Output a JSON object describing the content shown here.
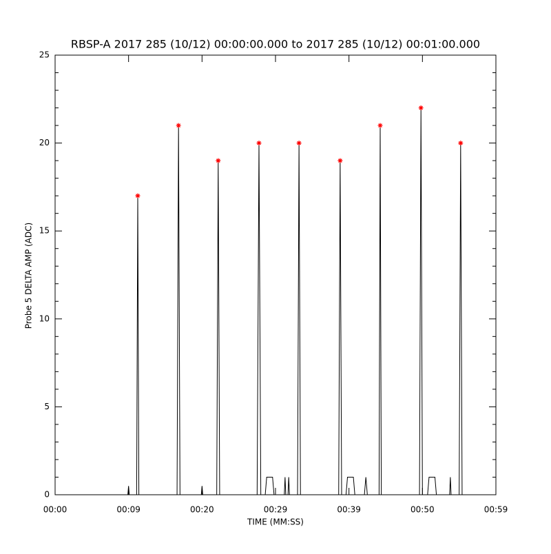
{
  "chart_data": {
    "type": "line",
    "title": "RBSP-A 2017 285 (10/12) 00:00:00.000 to 2017 285 (10/12) 00:01:00.000",
    "x_label": "TIME (MM:SS)",
    "y_label": "Probe 5 DELTA AMP (ADC)",
    "xlim": [
      0,
      60
    ],
    "xticks": [
      {
        "value": 0,
        "label": "00:00"
      },
      {
        "value": 10,
        "label": "00:09"
      },
      {
        "value": 20,
        "label": "00:20"
      },
      {
        "value": 30,
        "label": "00:29"
      },
      {
        "value": 40,
        "label": "00:39"
      },
      {
        "value": 50,
        "label": "00:50"
      },
      {
        "value": 60,
        "label": "00:59"
      }
    ],
    "ylim": [
      0,
      25
    ],
    "yticks": [
      0,
      5,
      10,
      15,
      20,
      25
    ],
    "yminor": 5,
    "series": [
      {
        "color": "#000000",
        "style": "line",
        "x": [
          0,
          9.9,
          10.0,
          10.1,
          11.1,
          11.25,
          11.4,
          16.6,
          16.8,
          17.0,
          19.9,
          20.0,
          20.1,
          22.0,
          22.2,
          22.4,
          27.5,
          27.75,
          28.0,
          28.6,
          28.8,
          29.6,
          29.8,
          31.2,
          31.3,
          31.4,
          31.7,
          31.8,
          31.9,
          33.0,
          33.2,
          33.4,
          38.6,
          38.8,
          39.0,
          39.6,
          39.8,
          40.6,
          40.8,
          42.1,
          42.3,
          42.5,
          44.1,
          44.25,
          44.4,
          49.6,
          49.8,
          50.0,
          50.7,
          50.9,
          51.7,
          51.9,
          53.7,
          53.8,
          53.9,
          55.0,
          55.2,
          55.4,
          60
        ],
        "values": [
          0,
          0,
          0.5,
          0,
          0,
          17,
          0,
          0,
          21,
          0,
          0,
          0.5,
          0,
          0,
          19,
          0,
          0,
          20,
          0,
          0,
          1,
          1,
          0,
          0,
          1,
          0,
          0,
          1,
          0,
          0,
          20,
          0,
          0,
          19,
          0,
          0,
          1,
          1,
          0,
          0,
          1,
          0,
          0,
          21,
          0,
          0,
          22,
          0,
          0,
          1,
          1,
          0,
          0,
          1,
          0,
          0,
          20,
          0,
          0
        ]
      },
      {
        "color": "#ff0000",
        "style": "asterisk",
        "x": [
          11.25,
          16.8,
          22.2,
          27.75,
          33.2,
          38.8,
          44.25,
          49.8,
          55.2
        ],
        "values": [
          17,
          21,
          19,
          20,
          20,
          19,
          21,
          22,
          20
        ]
      }
    ]
  }
}
